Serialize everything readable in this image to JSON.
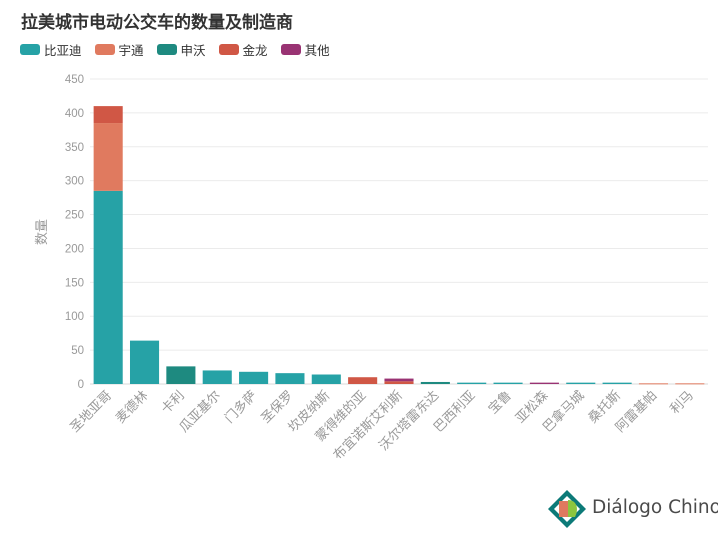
{
  "chart_data": {
    "type": "bar",
    "stacked": true,
    "title": "拉美城市电动公交车的数量及制造商",
    "ylabel": "数量",
    "xlabel": "",
    "ylim": [
      0,
      450
    ],
    "yticks": [
      0,
      50,
      100,
      150,
      200,
      250,
      300,
      350,
      400,
      450
    ],
    "grid": true,
    "legend_position": "top-left",
    "categories": [
      "圣地亚哥",
      "麦德林",
      "卡利",
      "瓜亚基尔",
      "门多萨",
      "圣保罗",
      "坎皮纳斯",
      "蒙得维的亚",
      "布宜诺斯艾利斯",
      "沃尔塔雷东达",
      "巴西利亚",
      "宝鲁",
      "亚松森",
      "巴拿马城",
      "桑托斯",
      "阿雷基帕",
      "利马"
    ],
    "series": [
      {
        "name": "比亚迪",
        "color": "#26a2a6",
        "values": [
          285,
          64,
          0,
          20,
          18,
          16,
          14,
          0,
          0,
          0,
          2,
          2,
          0,
          2,
          2,
          0,
          0
        ]
      },
      {
        "name": "宇通",
        "color": "#e07a5f",
        "values": [
          100,
          0,
          0,
          0,
          0,
          0,
          0,
          0,
          0,
          0,
          0,
          0,
          0,
          0,
          0,
          1,
          1
        ]
      },
      {
        "name": "申沃",
        "color": "#1e8a80",
        "values": [
          0,
          0,
          26,
          0,
          0,
          0,
          0,
          0,
          0,
          3,
          0,
          0,
          0,
          0,
          0,
          0,
          0
        ]
      },
      {
        "name": "金龙",
        "color": "#d05745",
        "values": [
          25,
          0,
          0,
          0,
          0,
          0,
          0,
          10,
          4,
          0,
          0,
          0,
          0,
          0,
          0,
          0,
          0
        ]
      },
      {
        "name": "其他",
        "color": "#993373",
        "values": [
          0,
          0,
          0,
          0,
          0,
          0,
          0,
          0,
          4,
          0,
          0,
          0,
          2,
          0,
          0,
          0,
          0
        ]
      }
    ]
  },
  "logo": {
    "text": "Diálogo Chino"
  }
}
